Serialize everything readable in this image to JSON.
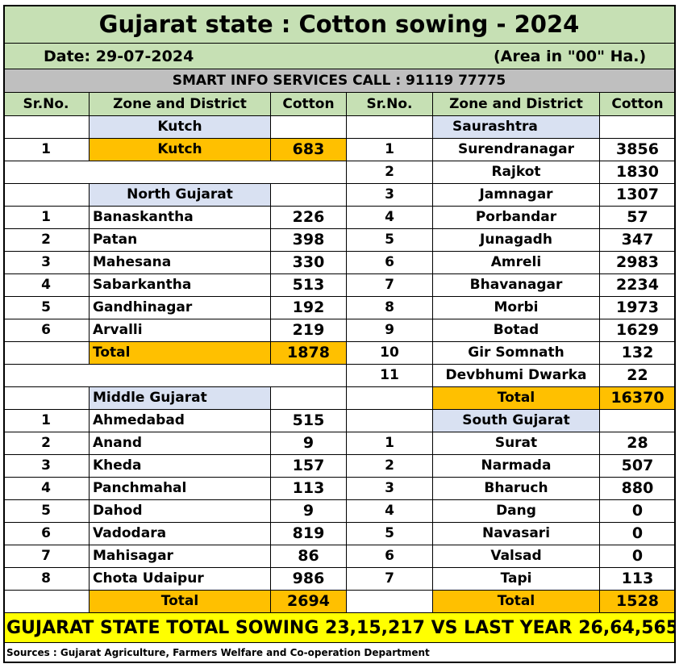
{
  "title": "Gujarat state : Cotton sowing - 2024",
  "date": "Date: 29-07-2024",
  "area_note": "(Area in \"00\" Ha.)",
  "info_line": "SMART INFO SERVICES CALL : 91119 77775",
  "headers": {
    "srno": "Sr.No.",
    "zone": "Zone and District",
    "cotton": "Cotton"
  },
  "left": {
    "kutch": {
      "heading": "Kutch",
      "row": {
        "sr": "1",
        "name": "Kutch",
        "value": "683"
      }
    },
    "north": {
      "heading": "North Gujarat",
      "rows": [
        {
          "sr": "1",
          "name": "Banaskantha",
          "value": "226"
        },
        {
          "sr": "2",
          "name": "Patan",
          "value": "398"
        },
        {
          "sr": "3",
          "name": "Mahesana",
          "value": "330"
        },
        {
          "sr": "4",
          "name": "Sabarkantha",
          "value": "513"
        },
        {
          "sr": "5",
          "name": "Gandhinagar",
          "value": "192"
        },
        {
          "sr": "6",
          "name": "Arvalli",
          "value": "219"
        }
      ],
      "total_label": "Total",
      "total_value": "1878"
    },
    "middle": {
      "heading": "Middle Gujarat",
      "rows": [
        {
          "sr": "1",
          "name": "Ahmedabad",
          "value": "515"
        },
        {
          "sr": "2",
          "name": "Anand",
          "value": "9"
        },
        {
          "sr": "3",
          "name": "Kheda",
          "value": "157"
        },
        {
          "sr": "4",
          "name": "Panchmahal",
          "value": "113"
        },
        {
          "sr": "5",
          "name": "Dahod",
          "value": "9"
        },
        {
          "sr": "6",
          "name": "Vadodara",
          "value": "819"
        },
        {
          "sr": "7",
          "name": "Mahisagar",
          "value": "86"
        },
        {
          "sr": "8",
          "name": "Chota Udaipur",
          "value": "986"
        }
      ],
      "total_label": "Total",
      "total_value": "2694"
    }
  },
  "right": {
    "saurashtra": {
      "heading": "Saurashtra",
      "rows": [
        {
          "sr": "1",
          "name": "Surendranagar",
          "value": "3856"
        },
        {
          "sr": "2",
          "name": "Rajkot",
          "value": "1830"
        },
        {
          "sr": "3",
          "name": "Jamnagar",
          "value": "1307"
        },
        {
          "sr": "4",
          "name": "Porbandar",
          "value": "57"
        },
        {
          "sr": "5",
          "name": "Junagadh",
          "value": "347"
        },
        {
          "sr": "6",
          "name": "Amreli",
          "value": "2983"
        },
        {
          "sr": "7",
          "name": "Bhavanagar",
          "value": "2234"
        },
        {
          "sr": "8",
          "name": "Morbi",
          "value": "1973"
        },
        {
          "sr": "9",
          "name": "Botad",
          "value": "1629"
        },
        {
          "sr": "10",
          "name": "Gir Somnath",
          "value": "132"
        },
        {
          "sr": "11",
          "name": "Devbhumi Dwarka",
          "value": "22"
        }
      ],
      "total_label": "Total",
      "total_value": "16370"
    },
    "south": {
      "heading": "South Gujarat",
      "rows": [
        {
          "sr": "1",
          "name": "Surat",
          "value": "28"
        },
        {
          "sr": "2",
          "name": "Narmada",
          "value": "507"
        },
        {
          "sr": "3",
          "name": "Bharuch",
          "value": "880"
        },
        {
          "sr": "4",
          "name": "Dang",
          "value": "0"
        },
        {
          "sr": "5",
          "name": "Navasari",
          "value": "0"
        },
        {
          "sr": "6",
          "name": "Valsad",
          "value": "0"
        },
        {
          "sr": "7",
          "name": "Tapi",
          "value": "113"
        }
      ],
      "total_label": "Total",
      "total_value": "1528"
    }
  },
  "grand_total": "GUJARAT STATE TOTAL SOWING 23,15,217 VS LAST YEAR 26,64,565",
  "source": "Sources : Gujarat Agriculture, Farmers Welfare and Co-operation Department",
  "colors": {
    "title_bg": "#c6e0b4",
    "info_bg": "#bfbfbf",
    "zone_heading_bg": "#d9e1f2",
    "total_bg": "#ffc000",
    "grand_total_bg": "#ffff00"
  }
}
